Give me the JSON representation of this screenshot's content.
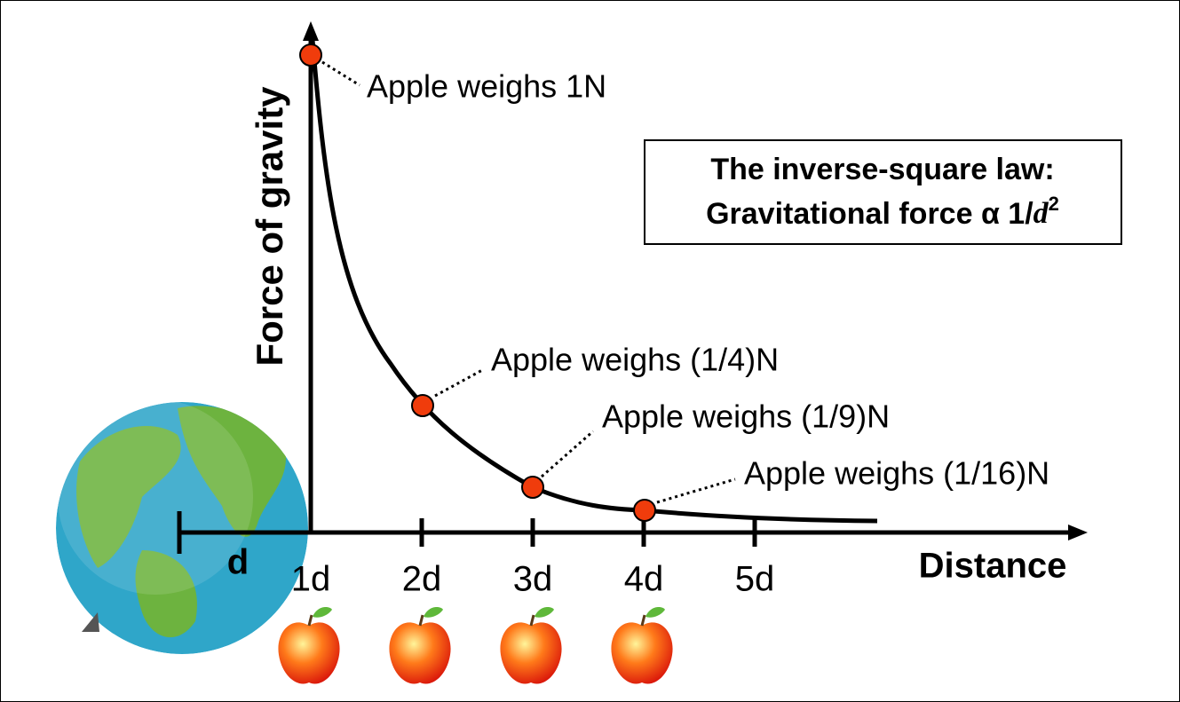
{
  "axes": {
    "y_label": "Force of gravity",
    "x_label": "Distance",
    "ruler_label": "d",
    "x_ticks": [
      "1d",
      "2d",
      "3d",
      "4d",
      "5d"
    ]
  },
  "points": [
    "Apple weighs 1N",
    "Apple weighs (1/4)N",
    "Apple weighs (1/9)N",
    "Apple weighs (1/16)N"
  ],
  "law_box": {
    "line1": "The inverse-square law:",
    "line2": {
      "text": "Gravitational force α 1/",
      "variable": "d",
      "exponent": "2"
    }
  }
}
